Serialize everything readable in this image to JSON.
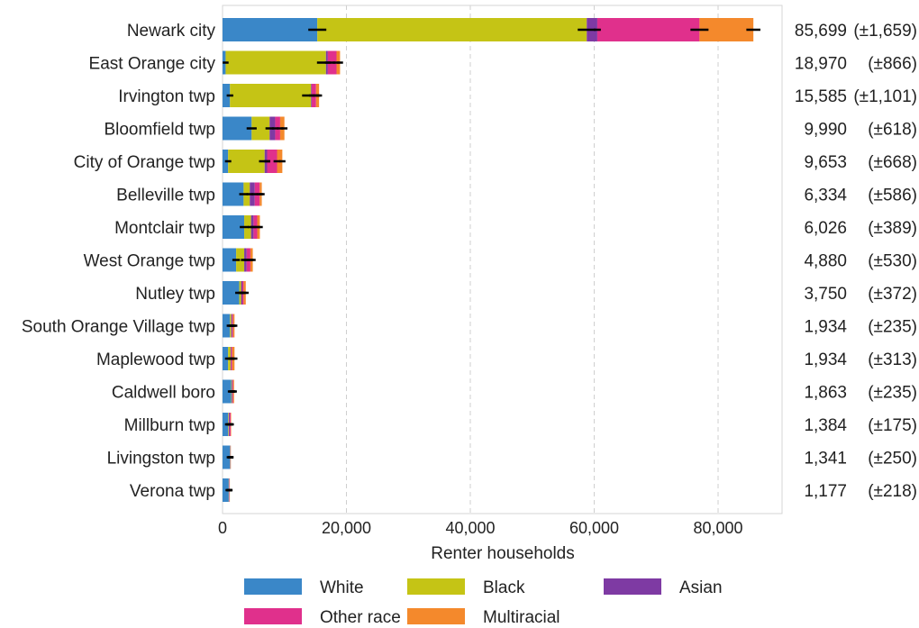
{
  "chart_data": {
    "type": "bar",
    "orientation": "horizontal",
    "stacked": true,
    "xlabel": "Renter households",
    "xlim": [
      0,
      90000
    ],
    "xticks": [
      0,
      20000,
      40000,
      60000,
      80000
    ],
    "xtick_labels": [
      "0",
      "20,000",
      "40,000",
      "60,000",
      "80,000"
    ],
    "grid": "vertical dashed",
    "legend_position": "bottom",
    "categories": [
      "Newark city",
      "East Orange city",
      "Irvington twp",
      "Bloomfield twp",
      "City of Orange twp",
      "Belleville twp",
      "Montclair twp",
      "West Orange twp",
      "Nutley twp",
      "South Orange Village twp",
      "Maplewood twp",
      "Caldwell boro",
      "Millburn twp",
      "Livingston twp",
      "Verona twp"
    ],
    "series": [
      {
        "name": "White",
        "color": "#3a87c8",
        "values": [
          15300,
          500,
          1200,
          4700,
          900,
          3400,
          3500,
          2200,
          2700,
          1200,
          900,
          1400,
          900,
          1200,
          1000
        ]
      },
      {
        "name": "Black",
        "color": "#c5c415",
        "values": [
          43500,
          16200,
          13100,
          2900,
          5900,
          1000,
          1100,
          1300,
          300,
          200,
          400,
          100,
          100,
          50,
          50
        ]
      },
      {
        "name": "Asian",
        "color": "#7e3aa3",
        "values": [
          1700,
          300,
          100,
          900,
          400,
          800,
          400,
          400,
          200,
          150,
          100,
          100,
          150,
          50,
          50
        ]
      },
      {
        "name": "Other race",
        "color": "#e0308c",
        "values": [
          16500,
          1400,
          700,
          800,
          1600,
          800,
          600,
          600,
          200,
          150,
          150,
          100,
          150,
          20,
          40
        ]
      },
      {
        "name": "Multiracial",
        "color": "#f4892c",
        "values": [
          8699,
          570,
          485,
          690,
          853,
          334,
          426,
          380,
          350,
          234,
          384,
          163,
          84,
          21,
          37
        ]
      }
    ],
    "totals": [
      "85,699",
      "18,970",
      "15,585",
      "9,990",
      "9,653",
      "6,334",
      "6,026",
      "4,880",
      "3,750",
      "1,934",
      "1,934",
      "1,863",
      "1,384",
      "1,341",
      "1,177"
    ],
    "moe": [
      "(±1,659)",
      "(±866)",
      "(±1,101)",
      "(±618)",
      "(±668)",
      "(±586)",
      "(±389)",
      "(±530)",
      "(±372)",
      "(±235)",
      "(±313)",
      "(±235)",
      "(±175)",
      "(±250)",
      "(±218)"
    ]
  }
}
